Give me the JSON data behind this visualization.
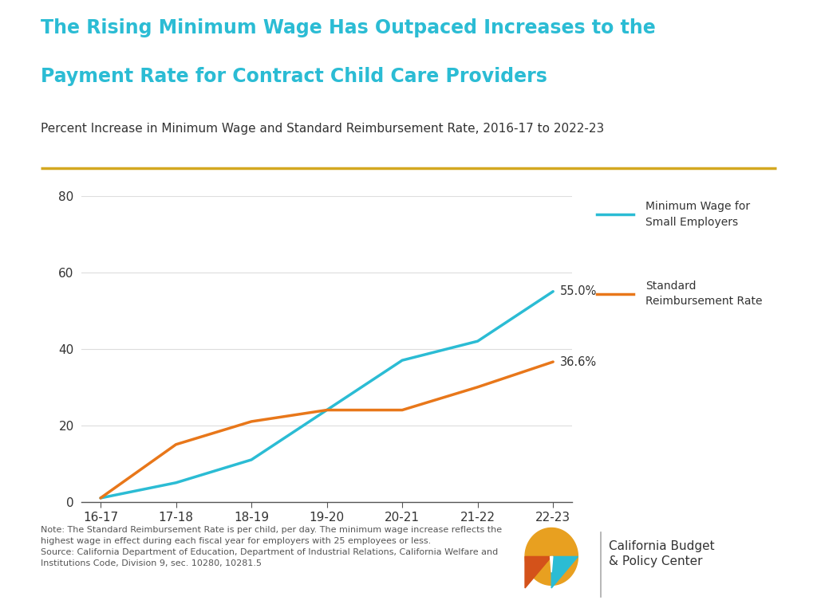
{
  "title_line1": "The Rising Minimum Wage Has Outpaced Increases to the",
  "title_line2": "Payment Rate for Contract Child Care Providers",
  "subtitle": "Percent Increase in Minimum Wage and Standard Reimbursement Rate, 2016-17 to 2022-23",
  "x_labels": [
    "16-17",
    "17-18",
    "18-19",
    "19-20",
    "20-21",
    "21-22",
    "22-23"
  ],
  "min_wage": [
    1.0,
    5.0,
    11.0,
    24.0,
    37.0,
    42.0,
    55.0
  ],
  "reimb_rate": [
    1.0,
    15.0,
    21.0,
    24.0,
    24.0,
    30.0,
    36.6
  ],
  "min_wage_color": "#2BBCD4",
  "reimb_color": "#E8771A",
  "min_wage_label": "Minimum Wage for\nSmall Employers",
  "reimb_label": "Standard\nReimbursement Rate",
  "min_wage_end_label": "55.0%",
  "reimb_end_label": "36.6%",
  "title_color": "#2BBCD4",
  "subtitle_color": "#333333",
  "divider_color": "#D4A820",
  "ylim": [
    0,
    80
  ],
  "yticks": [
    0,
    20,
    40,
    60,
    80
  ],
  "note_text": "Note: The Standard Reimbursement Rate is per child, per day. The minimum wage increase reflects the\nhighest wage in effect during each fiscal year for employers with 25 employees or less.\nSource: California Department of Education, Department of Industrial Relations, California Welfare and\nInstitutions Code, Division 9, sec. 10280, 10281.5",
  "logo_text": "California Budget\n& Policy Center",
  "background_color": "#FFFFFF"
}
